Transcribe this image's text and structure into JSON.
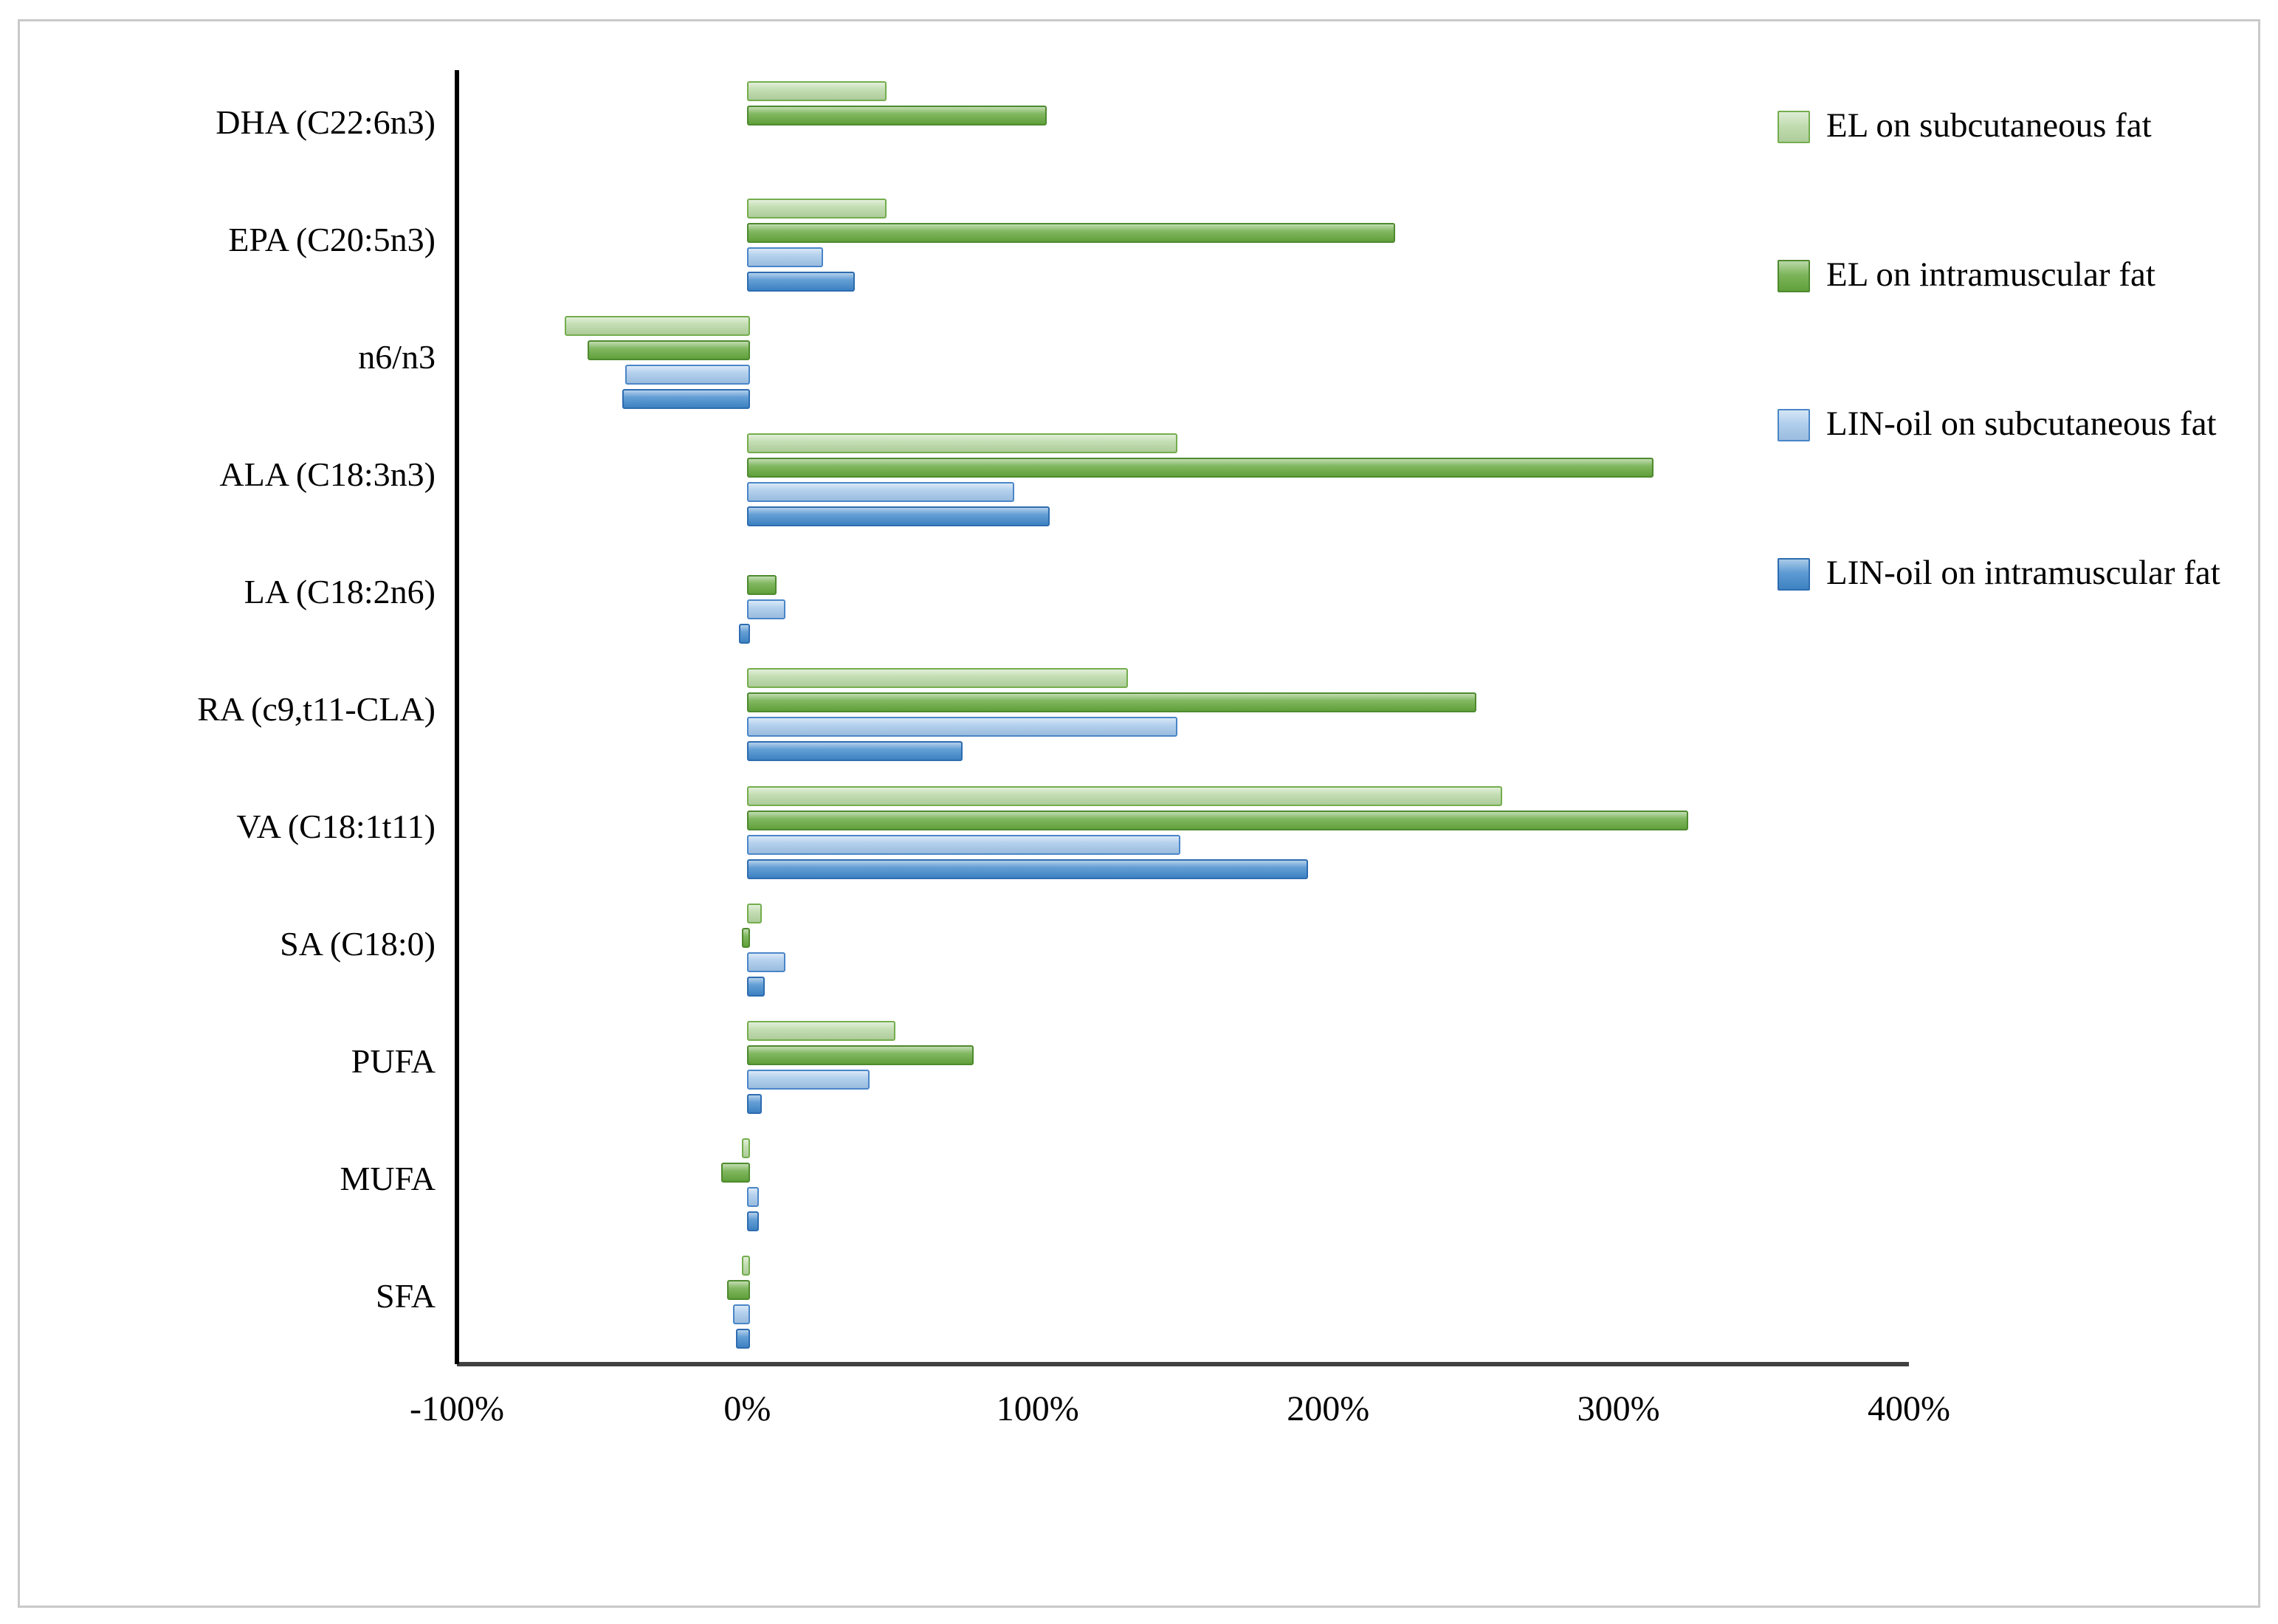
{
  "figure": {
    "background": "#ffffff",
    "frame_border_color": "#c9c9c9",
    "axis_line_color": "#404040",
    "zero_line_color": "#000000"
  },
  "chart_data": {
    "type": "bar",
    "orientation": "horizontal",
    "title": "",
    "xlabel": "",
    "ylabel": "",
    "grid": false,
    "legend_position": "right",
    "xlim": [
      -100,
      400
    ],
    "x_ticks": [
      -100,
      0,
      100,
      200,
      300,
      400
    ],
    "x_tick_labels": [
      "-100%",
      "0%",
      "100%",
      "200%",
      "300%",
      "400%"
    ],
    "value_unit": "percent",
    "categories": [
      "DHA (C22:6n3)",
      "EPA (C20:5n3)",
      "n6/n3",
      "ALA (C18:3n3)",
      "LA (C18:2n6)",
      "RA (c9,t11-CLA)",
      "VA (C18:1t11)",
      "SA (C18:0)",
      "PUFA",
      "MUFA",
      "SFA"
    ],
    "series": [
      {
        "key": "el-subcutaneous",
        "name": "EL on subcutaneous fat",
        "fill": "#b7d7a3",
        "border": "#74ad4d",
        "values": [
          47,
          47,
          -63,
          147,
          0,
          130,
          259,
          4,
          50,
          -2,
          -2
        ]
      },
      {
        "key": "el-intramuscular",
        "name": "EL on intramuscular fat",
        "fill": "#66a83e",
        "border": "#4e8a2f",
        "values": [
          102,
          222,
          -55,
          311,
          9,
          250,
          323,
          -2,
          77,
          -9,
          -7
        ]
      },
      {
        "key": "lin-oil-subcutaneous",
        "name": "LIN-oil on subcutaneous fat",
        "fill": "#a3c6ea",
        "border": "#4a86c8",
        "values": [
          0,
          25,
          -42,
          91,
          12,
          147,
          148,
          12,
          41,
          3,
          -5
        ]
      },
      {
        "key": "lin-oil-intramuscular",
        "name": "LIN-oil on intramuscular fat",
        "fill": "#4189cc",
        "border": "#2e6cb0",
        "values": [
          0,
          36,
          -43,
          103,
          -3,
          73,
          192,
          5,
          4,
          3,
          -4
        ]
      }
    ]
  }
}
